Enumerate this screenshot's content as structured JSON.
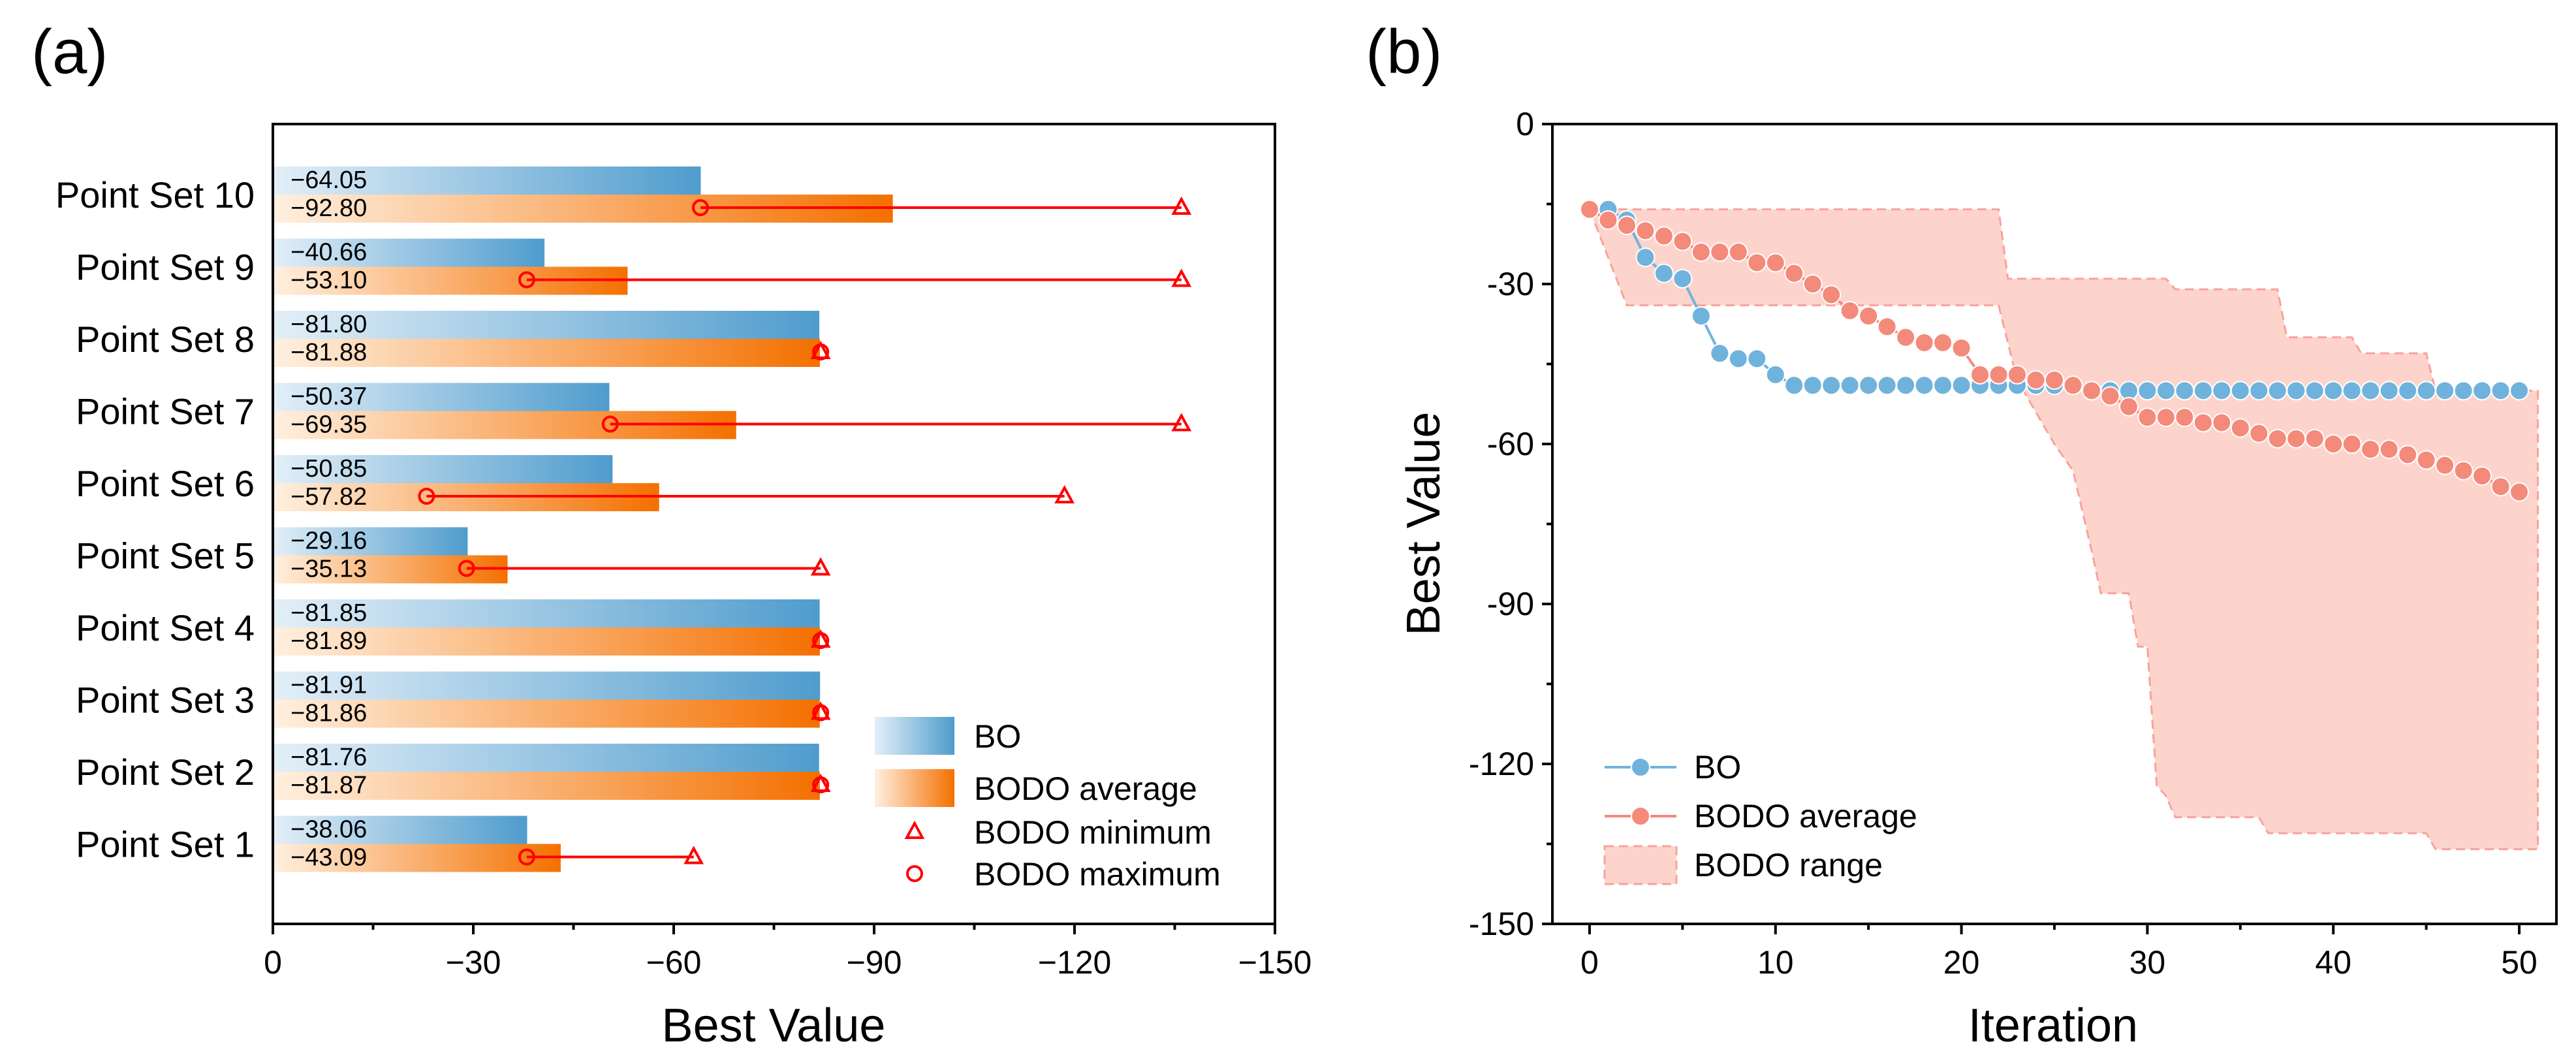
{
  "panels": {
    "a": {
      "label": "(a)",
      "chart_data": {
        "type": "bar",
        "orientation": "horizontal",
        "xlabel": "Best Value",
        "ylabel": "",
        "xlim": [
          0,
          -150
        ],
        "xticks": [
          0,
          -30,
          -60,
          -90,
          -120,
          -150
        ],
        "xtick_labels": [
          "0",
          "−30",
          "−60",
          "−90",
          "−120",
          "−150"
        ],
        "categories": [
          "Point Set 10",
          "Point Set 9",
          "Point Set 8",
          "Point Set 7",
          "Point Set 6",
          "Point Set 5",
          "Point Set 4",
          "Point Set 3",
          "Point Set 2",
          "Point Set 1"
        ],
        "series": [
          {
            "name": "BO",
            "values": [
              -64.05,
              -40.66,
              -81.8,
              -50.37,
              -50.85,
              -29.16,
              -81.85,
              -81.91,
              -81.76,
              -38.06
            ],
            "labels": [
              "−64.05",
              "−40.66",
              "−81.80",
              "−50.37",
              "−50.85",
              "−29.16",
              "−81.85",
              "−81.91",
              "−81.76",
              "−38.06"
            ]
          },
          {
            "name": "BODO average",
            "values": [
              -92.8,
              -53.1,
              -81.88,
              -69.35,
              -57.82,
              -35.13,
              -81.89,
              -81.86,
              -81.87,
              -43.09
            ],
            "labels": [
              "−92.80",
              "−53.10",
              "−81.88",
              "−69.35",
              "−57.82",
              "−35.13",
              "−81.89",
              "−81.86",
              "−81.87",
              "−43.09"
            ]
          },
          {
            "name": "BODO minimum",
            "values": [
              -136,
              -136,
              -82,
              -136,
              -118.5,
              -82,
              -82,
              -82,
              -82,
              -63
            ]
          },
          {
            "name": "BODO maximum",
            "values": [
              -64,
              -38,
              -82,
              -50.5,
              -23,
              -29,
              -82,
              -82,
              -82,
              -38
            ]
          }
        ],
        "legend": [
          "BO",
          "BODO average",
          "BODO minimum",
          "BODO maximum"
        ],
        "legend_position": "bottom-right"
      }
    },
    "b": {
      "label": "(b)",
      "chart_data": {
        "type": "line",
        "xlabel": "Iteration",
        "ylabel": "Best Value",
        "xlim": [
          -2,
          52
        ],
        "ylim": [
          -150,
          0
        ],
        "xticks": [
          0,
          10,
          20,
          30,
          40,
          50
        ],
        "yticks": [
          0,
          -30,
          -60,
          -90,
          -120,
          -150
        ],
        "xtick_labels": [
          "0",
          "10",
          "20",
          "30",
          "40",
          "50"
        ],
        "ytick_labels": [
          "0",
          "-30",
          "-60",
          "-90",
          "-120",
          "-150"
        ],
        "series": [
          {
            "name": "BO",
            "x": [
              0,
              1,
              2,
              3,
              4,
              5,
              6,
              7,
              8,
              9,
              10,
              11,
              12,
              13,
              14,
              15,
              16,
              17,
              18,
              19,
              20,
              21,
              22,
              23,
              24,
              25,
              26,
              27,
              28,
              29,
              30,
              31,
              32,
              33,
              34,
              35,
              36,
              37,
              38,
              39,
              40,
              41,
              42,
              43,
              44,
              45,
              46,
              47,
              48,
              49,
              50
            ],
            "y": [
              -16,
              -16,
              -18,
              -25,
              -28,
              -29,
              -36,
              -43,
              -44,
              -44,
              -47,
              -49,
              -49,
              -49,
              -49,
              -49,
              -49,
              -49,
              -49,
              -49,
              -49,
              -49,
              -49,
              -49,
              -49,
              -49,
              -49,
              -50,
              -50,
              -50,
              -50,
              -50,
              -50,
              -50,
              -50,
              -50,
              -50,
              -50,
              -50,
              -50,
              -50,
              -50,
              -50,
              -50,
              -50,
              -50,
              -50,
              -50,
              -50,
              -50,
              -50
            ]
          },
          {
            "name": "BODO average",
            "x": [
              0,
              1,
              2,
              3,
              4,
              5,
              6,
              7,
              8,
              9,
              10,
              11,
              12,
              13,
              14,
              15,
              16,
              17,
              18,
              19,
              20,
              21,
              22,
              23,
              24,
              25,
              26,
              27,
              28,
              29,
              30,
              31,
              32,
              33,
              34,
              35,
              36,
              37,
              38,
              39,
              40,
              41,
              42,
              43,
              44,
              45,
              46,
              47,
              48,
              49,
              50
            ],
            "y": [
              -16,
              -18,
              -19,
              -20,
              -21,
              -22,
              -24,
              -24,
              -24,
              -26,
              -26,
              -28,
              -30,
              -32,
              -35,
              -36,
              -38,
              -40,
              -41,
              -41,
              -42,
              -47,
              -47,
              -47,
              -48,
              -48,
              -49,
              -50,
              -51,
              -53,
              -55,
              -55,
              -55,
              -56,
              -56,
              -57,
              -58,
              -59,
              -59,
              -59,
              -60,
              -60,
              -61,
              -61,
              -62,
              -63,
              -64,
              -65,
              -66,
              -68,
              -69
            ]
          },
          {
            "name": "BODO range",
            "type": "area",
            "x_upper": [
              0,
              2,
              2.5,
              22,
              22.5,
              31,
              31.5,
              37,
              37.5,
              41,
              41.5,
              45,
              45.5,
              51
            ],
            "y_upper": [
              -16,
              -16,
              -16,
              -16,
              -29,
              -29,
              -31,
              -31,
              -40,
              -40,
              -43,
              -43,
              -50,
              -50
            ],
            "x_lower": [
              0,
              2,
              2.5,
              22,
              23,
              25,
              26,
              27,
              27.5,
              29,
              29.5,
              30,
              30.5,
              31,
              31.5,
              36,
              36.5,
              45,
              45.5,
              51
            ],
            "y_lower": [
              -16,
              -34,
              -34,
              -34,
              -48,
              -60,
              -65,
              -80,
              -88,
              -88,
              -98,
              -98,
              -124,
              -126,
              -130,
              -130,
              -133,
              -133,
              -136,
              -136
            ]
          }
        ],
        "legend": [
          "BO",
          "BODO average",
          "BODO range"
        ],
        "legend_position": "bottom-left"
      }
    }
  },
  "colors": {
    "bo": "#5ba3d0",
    "bo_light": "#d6e8f4",
    "bodo": "#f57c00",
    "bodo_light": "#ffe8d2",
    "marker": "#ff0000",
    "bo_line": "#6fb3dc",
    "bodo_line": "#f48a7a",
    "range_fill": "#fdd4cc",
    "range_edge": "#f8a399"
  }
}
